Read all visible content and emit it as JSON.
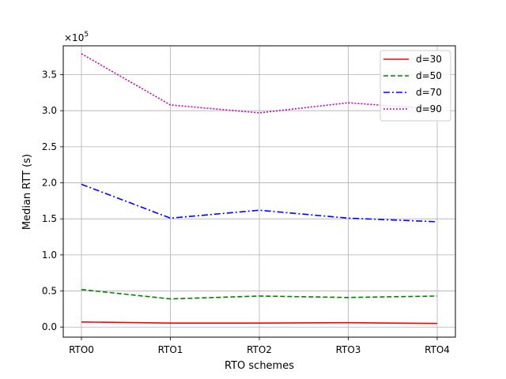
{
  "chart_data": {
    "type": "line",
    "xlabel": "RTO schemes",
    "ylabel": "Median RTT (s)",
    "y_scale_text": "×10",
    "y_scale_exponent": "5",
    "y_multiplier": 100000,
    "categories": [
      "RTO0",
      "RTO1",
      "RTO2",
      "RTO3",
      "RTO4"
    ],
    "ylim": [
      -0.14,
      3.9
    ],
    "yticks": [
      0.0,
      0.5,
      1.0,
      1.5,
      2.0,
      2.5,
      3.0,
      3.5
    ],
    "ytick_labels": [
      "0.0",
      "0.5",
      "1.0",
      "1.5",
      "2.0",
      "2.5",
      "3.0",
      "3.5"
    ],
    "grid": true,
    "legend_position": "top-right",
    "series": [
      {
        "name": "d=30",
        "color": "#ff0000",
        "dash": "solid",
        "values": [
          0.07,
          0.055,
          0.055,
          0.06,
          0.05
        ]
      },
      {
        "name": "d=50",
        "color": "#008000",
        "dash": "dashed",
        "values": [
          0.52,
          0.39,
          0.43,
          0.41,
          0.43
        ]
      },
      {
        "name": "d=70",
        "color": "#0000ff",
        "dash": "dashdot",
        "values": [
          1.98,
          1.51,
          1.62,
          1.51,
          1.46
        ]
      },
      {
        "name": "d=90",
        "color": "#bf00bf",
        "dash": "dotted",
        "values": [
          3.79,
          3.08,
          2.97,
          3.11,
          3.02
        ]
      }
    ]
  }
}
